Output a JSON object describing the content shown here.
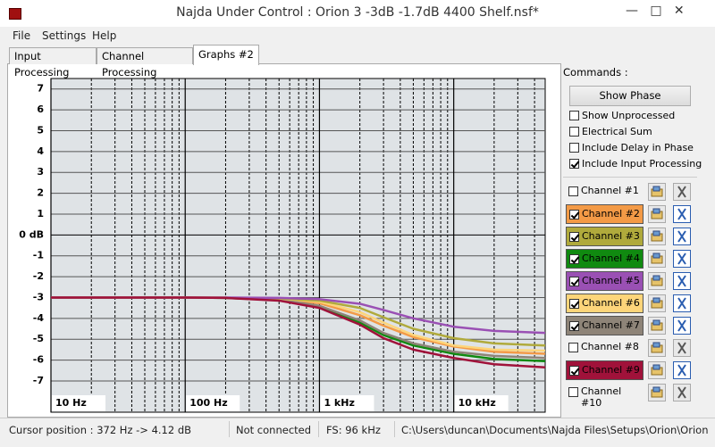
{
  "window": {
    "title": "Najda Under Control : Orion 3 -3dB -1.7dB 4400 Shelf.nsf*",
    "menu": [
      "File",
      "Settings",
      "Help"
    ],
    "tabs": [
      "Input Processing",
      "Channel Processing",
      "Graphs #2"
    ],
    "active_tab": 2
  },
  "commands": {
    "label": "Commands :",
    "button": "Show Phase",
    "options": [
      {
        "label": "Show Unprocessed",
        "checked": false
      },
      {
        "label": "Electrical Sum",
        "checked": false
      },
      {
        "label": "Include Delay in Phase",
        "checked": false
      },
      {
        "label": "Include Input Processing",
        "checked": true
      }
    ]
  },
  "channels": [
    {
      "label": "Channel #1",
      "checked": false
    },
    {
      "label": "Channel #2",
      "checked": true,
      "color": "#f39a46"
    },
    {
      "label": "Channel #3",
      "checked": true,
      "color": "#b0aa3c"
    },
    {
      "label": "Channel #4",
      "checked": true,
      "color": "#108a10"
    },
    {
      "label": "Channel #5",
      "checked": true,
      "color": "#9a50b4"
    },
    {
      "label": "Channel #6",
      "checked": true,
      "color": "#fdd57a"
    },
    {
      "label": "Channel #7",
      "checked": true,
      "color": "#8e8478"
    },
    {
      "label": "Channel #8",
      "checked": false
    },
    {
      "label": "Channel #9",
      "checked": true,
      "color": "#a0123a"
    },
    {
      "label": "Channel #10",
      "checked": false
    }
  ],
  "status": [
    "Cursor position : 372 Hz -> 4.12 dB",
    "Not connected",
    "FS: 96 kHz",
    "C:\\Users\\duncan\\Documents\\Najda Files\\Setups\\Orion\\Orion"
  ],
  "chart_data": {
    "type": "line",
    "xscale": "log",
    "grid": true,
    "x": [
      10,
      100,
      200,
      500,
      1000,
      2000,
      3000,
      5000,
      10000,
      20000,
      48000
    ],
    "xlim": [
      10,
      48000
    ],
    "ylim": [
      -8.5,
      7.5
    ],
    "xticks": [
      {
        "value": 10,
        "label": "10 Hz"
      },
      {
        "value": 100,
        "label": "100 Hz"
      },
      {
        "value": 1000,
        "label": "1 kHz"
      },
      {
        "value": 10000,
        "label": "10 kHz"
      }
    ],
    "xminor": [
      20,
      30,
      40,
      50,
      60,
      70,
      80,
      90,
      200,
      300,
      400,
      500,
      600,
      700,
      800,
      900,
      2000,
      3000,
      4000,
      5000,
      6000,
      7000,
      8000,
      9000,
      20000,
      30000,
      40000
    ],
    "yticks": [
      7,
      6,
      5,
      4,
      3,
      2,
      1,
      {
        "value": 0,
        "label": "0 dB"
      },
      -1,
      -2,
      -3,
      -4,
      -5,
      -6,
      -7
    ],
    "series": [
      {
        "color": "#108a10",
        "values": [
          -3,
          -3,
          -3.02,
          -3.12,
          -3.45,
          -4.2,
          -4.8,
          -5.3,
          -5.7,
          -5.95,
          -6.05
        ]
      },
      {
        "color": "#f39a46",
        "values": [
          -3,
          -3,
          -3.01,
          -3.07,
          -3.27,
          -3.85,
          -4.35,
          -4.9,
          -5.35,
          -5.6,
          -5.7
        ]
      },
      {
        "color": "#8e8478",
        "values": [
          -3,
          -3,
          -3.02,
          -3.1,
          -3.4,
          -4.1,
          -4.7,
          -5.2,
          -5.6,
          -5.8,
          -5.9
        ]
      },
      {
        "color": "#fdd57a",
        "values": [
          -3,
          -3,
          -3.01,
          -3.05,
          -3.2,
          -3.7,
          -4.2,
          -4.8,
          -5.3,
          -5.5,
          -5.55
        ]
      },
      {
        "color": "#b0aa3c",
        "values": [
          -3,
          -3,
          -3.01,
          -3.04,
          -3.15,
          -3.5,
          -3.95,
          -4.5,
          -4.95,
          -5.2,
          -5.3
        ]
      },
      {
        "color": "#9a50b4",
        "values": [
          -3,
          -3,
          -3,
          -3.02,
          -3.08,
          -3.3,
          -3.6,
          -4.0,
          -4.4,
          -4.6,
          -4.7
        ]
      },
      {
        "color": "#a0123a",
        "values": [
          -3,
          -3,
          -3.02,
          -3.15,
          -3.5,
          -4.3,
          -4.95,
          -5.5,
          -5.9,
          -6.2,
          -6.35
        ]
      }
    ]
  }
}
